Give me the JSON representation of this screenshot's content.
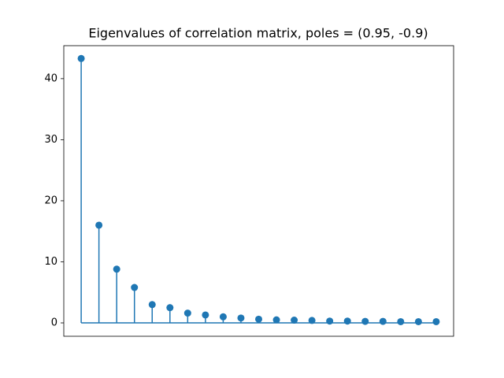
{
  "chart_data": {
    "type": "stem",
    "title": "Eigenvalues of correlation matrix, poles = (0.95, -0.9)",
    "x": [
      0,
      1,
      2,
      3,
      4,
      5,
      6,
      7,
      8,
      9,
      10,
      11,
      12,
      13,
      14,
      15,
      16,
      17,
      18,
      19,
      20
    ],
    "values": [
      43.3,
      16.0,
      8.8,
      5.8,
      3.0,
      2.5,
      1.6,
      1.3,
      1.0,
      0.8,
      0.6,
      0.5,
      0.45,
      0.4,
      0.3,
      0.3,
      0.25,
      0.25,
      0.2,
      0.2,
      0.2
    ],
    "color": "#1f77b4",
    "xlim": [
      -0.98,
      20.98
    ],
    "ylim": [
      -2.19,
      45.4
    ],
    "yticks": [
      0,
      10,
      20,
      30,
      40
    ],
    "grid": false
  }
}
